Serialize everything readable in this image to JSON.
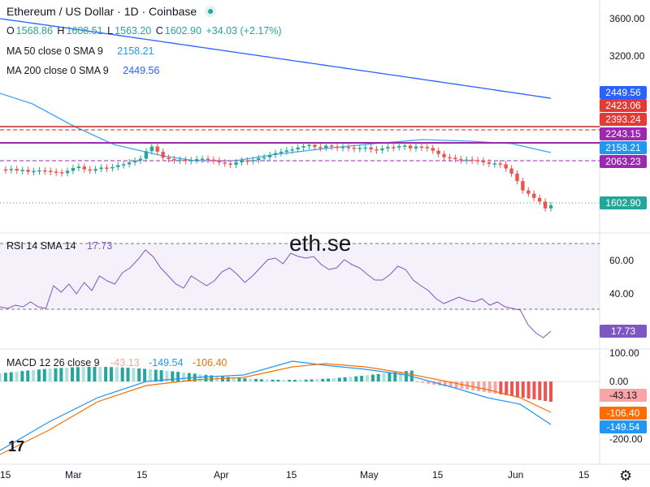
{
  "header": {
    "title": "Ethereum / US Dollar · 1D · Coinbase",
    "ohlc": {
      "o_label": "O",
      "o": "1568.86",
      "h_label": "H",
      "h": "1608.51",
      "l_label": "L",
      "l": "1563.20",
      "c_label": "C",
      "c": "1602.90",
      "chg": "+34.03 (+2.17%)"
    },
    "ma50_label": "MA 50 close 0 SMA 9",
    "ma50_value": "2158.21",
    "ma200_label": "MA 200 close 0 SMA 9",
    "ma200_value": "2449.56",
    "rsi_label": "RSI 14 SMA 14",
    "rsi_value": "17.73",
    "macd_label": "MACD 12 26 close 9",
    "macd_hist": "-43.13",
    "macd_line": "-149.54",
    "macd_signal": "-106.40"
  },
  "watermark": "eth.se",
  "logo": "17",
  "price_axis": {
    "ticks": [
      "3600.00",
      "3200.00"
    ],
    "labels": [
      {
        "text": "2449.56",
        "color": "#2962ff"
      },
      {
        "text": "2423.06",
        "color": "#e53935"
      },
      {
        "text": "2393.24",
        "color": "#e53935"
      },
      {
        "text": "2243.15",
        "color": "#9c27b0"
      },
      {
        "text": "2158.21",
        "color": "#2196f3"
      },
      {
        "text": "2063.23",
        "color": "#9c27b0"
      },
      {
        "text": "1602.90",
        "color": "#26a69a"
      }
    ]
  },
  "rsi_axis": {
    "ticks": [
      "60.00",
      "40.00"
    ],
    "current": "17.73"
  },
  "macd_axis": {
    "ticks": [
      "100.00",
      "0.00",
      "-200.00"
    ],
    "labels": [
      {
        "text": "-43.13",
        "color": "#f7a5a5",
        "textColor": "#131722"
      },
      {
        "text": "-106.40",
        "color": "#ff6d00",
        "textColor": "#ffffff"
      },
      {
        "text": "-149.54",
        "color": "#2196f3",
        "textColor": "#ffffff"
      }
    ]
  },
  "time_axis": [
    "15",
    "Mar",
    "15",
    "Apr",
    "15",
    "May",
    "15",
    "Jun",
    "15"
  ],
  "colors": {
    "up": "#26a69a",
    "down": "#ef5350",
    "ma50": "#2962ff",
    "ma200": "#42a5f5",
    "rsi": "#7e57c2",
    "macd": "#2196f3",
    "signal": "#ff6d00",
    "resistance": "#c62828",
    "support": "#9c27b0"
  },
  "chart_data": {
    "type": "line",
    "price": {
      "last_close": 1602.9,
      "ma50": 2158.21,
      "ma200": 2449.56,
      "close": [
        1985,
        1978,
        1990,
        1972,
        1980,
        1960,
        1968,
        1975,
        1970,
        1962,
        1955,
        1945,
        1970,
        2000,
        2015,
        1985,
        1972,
        1990,
        2005,
        1998,
        2010,
        2030,
        2040,
        2060,
        2080,
        2100,
        2180,
        2230,
        2175,
        2110,
        2095,
        2085,
        2090,
        2075,
        2085,
        2095,
        2100,
        2090,
        2080,
        2060,
        2048,
        2035,
        2060,
        2080,
        2075,
        2085,
        2105,
        2115,
        2140,
        2160,
        2175,
        2190,
        2200,
        2220,
        2235,
        2248,
        2225,
        2215,
        2240,
        2230,
        2215,
        2225,
        2218,
        2205,
        2215,
        2220,
        2200,
        2190,
        2210,
        2225,
        2220,
        2235,
        2240,
        2210,
        2230,
        2225,
        2215,
        2185,
        2150,
        2115,
        2110,
        2095,
        2085,
        2090,
        2085,
        2080,
        2060,
        2045,
        2050,
        2040,
        1995,
        1940,
        1860,
        1760,
        1725,
        1680,
        1640,
        1568,
        1602
      ]
    },
    "rsi": {
      "upper": 70,
      "lower": 30,
      "current": 17.73
    },
    "macd": {
      "histogram_last": -43.13,
      "macd_last": -149.54,
      "signal_last": -106.4
    }
  }
}
